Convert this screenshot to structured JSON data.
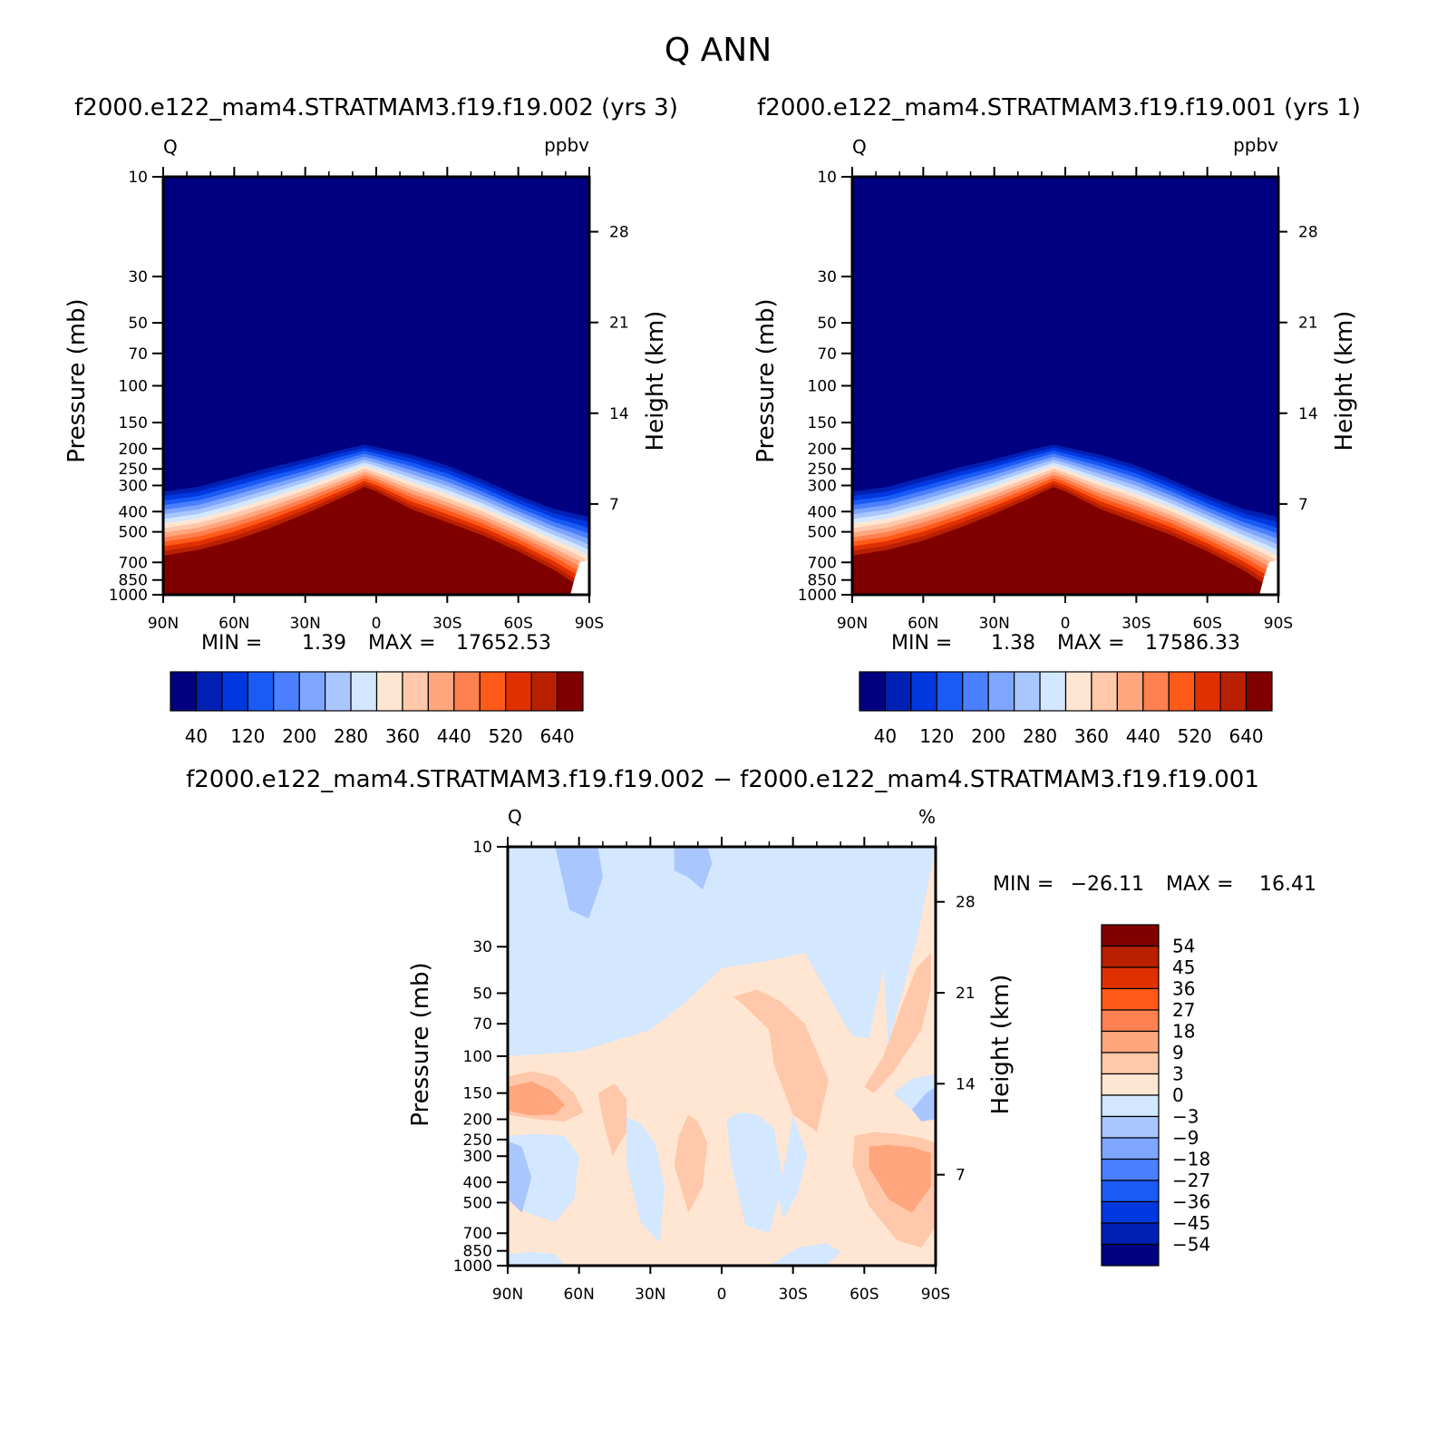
{
  "figure": {
    "title": "Q  ANN",
    "colors": {
      "ramp12": [
        "#000080",
        "#0020b4",
        "#0038e0",
        "#1a5af5",
        "#4a80ff",
        "#7ea6ff",
        "#aac6ff",
        "#d3e7ff",
        "#ffe6d2",
        "#ffc8aa",
        "#ffa67e",
        "#ff8050",
        "#ff5a1a",
        "#e03000",
        "#b82000",
        "#800000"
      ],
      "diff": [
        "#800000",
        "#b82000",
        "#e03000",
        "#ff5a1a",
        "#ff8050",
        "#ffa67e",
        "#ffc8aa",
        "#ffe6d2",
        "#d3e7ff",
        "#aac6ff",
        "#7ea6ff",
        "#4a80ff",
        "#1a5af5",
        "#0038e0",
        "#0020b4",
        "#000080"
      ]
    }
  },
  "chart_data": [
    {
      "type": "heatmap",
      "panel": "left",
      "title": "f2000.e122_mam4.STRATMAM3.f19.f19.002  (yrs  3)",
      "left_label": "Q",
      "right_label": "ppbv",
      "xlabel": "",
      "ylabel": "Pressure  (mb)",
      "ylabel_right": "Height  (km)",
      "x_ticks": [
        "90N",
        "60N",
        "30N",
        "0",
        "30S",
        "60S",
        "90S"
      ],
      "y_ticks": [
        10,
        30,
        50,
        70,
        100,
        150,
        200,
        250,
        300,
        400,
        500,
        700,
        850,
        1000
      ],
      "height_ticks": [
        28,
        21,
        14,
        7
      ],
      "ylim": [
        10,
        1000
      ],
      "y_scale": "log",
      "stats": {
        "min_label": "MIN =",
        "min": "1.39",
        "max_label": "MAX =",
        "max": "17652.53"
      },
      "colorbar_labels": [
        "40",
        "120",
        "200",
        "280",
        "360",
        "440",
        "520",
        "640"
      ],
      "field": {
        "lat": [
          90,
          75,
          60,
          45,
          30,
          15,
          5,
          0,
          -15,
          -30,
          -45,
          -60,
          -75,
          -85,
          -90
        ],
        "transition_top_mb": [
          305,
          290,
          260,
          235,
          215,
          195,
          185,
          190,
          205,
          230,
          270,
          320,
          370,
          390,
          400
        ],
        "transition_bottom_mb": [
          650,
          610,
          550,
          480,
          410,
          345,
          305,
          320,
          390,
          450,
          520,
          620,
          760,
          900,
          1000
        ]
      }
    },
    {
      "type": "heatmap",
      "panel": "right",
      "title": "f2000.e122_mam4.STRATMAM3.f19.f19.001  (yrs  1)",
      "left_label": "Q",
      "right_label": "ppbv",
      "xlabel": "",
      "ylabel": "Pressure  (mb)",
      "ylabel_right": "Height  (km)",
      "x_ticks": [
        "90N",
        "60N",
        "30N",
        "0",
        "30S",
        "60S",
        "90S"
      ],
      "y_ticks": [
        10,
        30,
        50,
        70,
        100,
        150,
        200,
        250,
        300,
        400,
        500,
        700,
        850,
        1000
      ],
      "height_ticks": [
        28,
        21,
        14,
        7
      ],
      "ylim": [
        10,
        1000
      ],
      "y_scale": "log",
      "stats": {
        "min_label": "MIN =",
        "min": "1.38",
        "max_label": "MAX =",
        "max": "17586.33"
      },
      "colorbar_labels": [
        "40",
        "120",
        "200",
        "280",
        "360",
        "440",
        "520",
        "640"
      ],
      "field": {
        "lat": [
          90,
          75,
          60,
          45,
          30,
          15,
          5,
          0,
          -15,
          -30,
          -45,
          -60,
          -75,
          -85,
          -90
        ],
        "transition_top_mb": [
          305,
          290,
          260,
          235,
          215,
          195,
          185,
          190,
          205,
          230,
          270,
          320,
          370,
          390,
          400
        ],
        "transition_bottom_mb": [
          650,
          610,
          550,
          480,
          410,
          345,
          305,
          320,
          390,
          450,
          520,
          620,
          760,
          900,
          1000
        ]
      }
    },
    {
      "type": "heatmap",
      "panel": "difference",
      "title": "f2000.e122_mam4.STRATMAM3.f19.f19.002 − f2000.e122_mam4.STRATMAM3.f19.f19.001",
      "left_label": "Q",
      "right_label": "%",
      "xlabel": "",
      "ylabel": "Pressure  (mb)",
      "ylabel_right": "Height  (km)",
      "x_ticks": [
        "90N",
        "60N",
        "30N",
        "0",
        "30S",
        "60S",
        "90S"
      ],
      "y_ticks": [
        10,
        30,
        50,
        70,
        100,
        150,
        200,
        250,
        300,
        400,
        500,
        700,
        850,
        1000
      ],
      "height_ticks": [
        28,
        21,
        14,
        7
      ],
      "ylim": [
        10,
        1000
      ],
      "y_scale": "log",
      "stats": {
        "min_label": "MIN =",
        "min": "−26.11",
        "max_label": "MAX =",
        "max": "16.41"
      },
      "colorbar_labels": [
        "54",
        "45",
        "36",
        "27",
        "18",
        "9",
        "3",
        "0",
        "−3",
        "−9",
        "−18",
        "−27",
        "−36",
        "−45",
        "−54"
      ],
      "regions": [
        {
          "level": "0 to 3",
          "color_index": 7,
          "lat": [
            90,
            60,
            30,
            15,
            0,
            -20,
            -35,
            -50,
            -55,
            -62,
            -70,
            -90,
            -90,
            90
          ],
          "p": [
            100,
            95,
            75,
            55,
            38,
            35,
            32,
            65,
            80,
            82,
            30,
            10,
            1000,
            1000
          ]
        },
        {
          "level": "3 to 9",
          "color_index": 6,
          "lat": [
            -20,
            -10,
            -5,
            -15,
            -25,
            -35,
            -45,
            -40,
            -30,
            -22
          ],
          "p": [
            75,
            58,
            52,
            48,
            55,
            70,
            130,
            230,
            190,
            110
          ]
        },
        {
          "level": "3 to 9",
          "color_index": 6,
          "lat": [
            -60,
            -68,
            -75,
            -82,
            -88,
            -88,
            -84,
            -72,
            -64
          ],
          "p": [
            140,
            100,
            60,
            38,
            32,
            48,
            75,
            120,
            150
          ]
        },
        {
          "level": "3 to 9",
          "color_index": 6,
          "lat": [
            90,
            80,
            70,
            62,
            58,
            66,
            78,
            90
          ],
          "p": [
            125,
            118,
            125,
            150,
            185,
            205,
            200,
            190
          ]
        },
        {
          "level": "3 to 9",
          "color_index": 6,
          "lat": [
            -56,
            -64,
            -74,
            -84,
            -90,
            -90,
            -84,
            -74,
            -62,
            -55
          ],
          "p": [
            240,
            230,
            235,
            245,
            260,
            650,
            820,
            760,
            520,
            330
          ]
        },
        {
          "level": "3 to 9",
          "color_index": 6,
          "lat": [
            14,
            10,
            6,
            8,
            14,
            20,
            18
          ],
          "p": [
            190,
            205,
            260,
            420,
            560,
            330,
            240
          ]
        },
        {
          "level": "3 to 9",
          "color_index": 6,
          "lat": [
            52,
            45,
            40,
            40,
            46,
            50
          ],
          "p": [
            150,
            135,
            160,
            230,
            300,
            200
          ]
        },
        {
          "level": "9 to 18",
          "color_index": 5,
          "lat": [
            90,
            80,
            72,
            66,
            70,
            80,
            90
          ],
          "p": [
            140,
            132,
            145,
            170,
            190,
            192,
            182
          ]
        },
        {
          "level": "9 to 18",
          "color_index": 5,
          "lat": [
            -62,
            -70,
            -80,
            -88,
            -88,
            -80,
            -70,
            -62
          ],
          "p": [
            270,
            265,
            272,
            290,
            420,
            560,
            480,
            340
          ]
        },
        {
          "level": "-3 to 0",
          "color_index": 8,
          "lat": [
            90,
            70,
            50,
            30,
            10,
            -10,
            -30,
            -50,
            -65,
            -70,
            -82,
            -90,
            -90,
            90
          ],
          "p": [
            10,
            10,
            10,
            10,
            10,
            10,
            10,
            10,
            10,
            88,
            28,
            10,
            1,
            1
          ]
        },
        {
          "level": "-3 to 0",
          "color_index": 8,
          "lat": [
            90,
            78,
            66,
            60,
            62,
            70,
            82,
            90
          ],
          "p": [
            240,
            235,
            240,
            300,
            480,
            620,
            560,
            440
          ]
        },
        {
          "level": "-3 to 0",
          "color_index": 8,
          "lat": [
            40,
            34,
            28,
            24,
            26,
            34,
            40
          ],
          "p": [
            195,
            210,
            260,
            420,
            780,
            620,
            330
          ]
        },
        {
          "level": "-3 to 0",
          "color_index": 8,
          "lat": [
            -2,
            -8,
            -15,
            -22,
            -26,
            -20,
            -10,
            -4
          ],
          "p": [
            200,
            185,
            190,
            220,
            400,
            700,
            640,
            330
          ]
        },
        {
          "level": "-3 to 0",
          "color_index": 8,
          "lat": [
            -30,
            -28,
            -24,
            -26,
            -32,
            -36
          ],
          "p": [
            190,
            260,
            470,
            600,
            450,
            300
          ]
        },
        {
          "level": "-3 to 0",
          "color_index": 8,
          "lat": [
            90,
            80,
            70,
            66,
            72,
            82,
            90
          ],
          "p": [
            880,
            860,
            880,
            1000,
            1000,
            1000,
            1000
          ]
        },
        {
          "level": "-3 to 0",
          "color_index": 8,
          "lat": [
            -20,
            -32,
            -44,
            -50,
            -44,
            -30
          ],
          "p": [
            1000,
            820,
            780,
            860,
            1000,
            1000
          ]
        },
        {
          "level": "-3 to 0",
          "color_index": 8,
          "lat": [
            -72,
            -80,
            -90,
            -90,
            -82
          ],
          "p": [
            150,
            128,
            122,
            200,
            190
          ]
        },
        {
          "level": "-9 to -3",
          "color_index": 9,
          "lat": [
            90,
            84,
            80,
            84,
            90
          ],
          "p": [
            255,
            270,
            380,
            560,
            480
          ]
        },
        {
          "level": "-9 to -3",
          "color_index": 9,
          "lat": [
            70,
            62,
            56,
            52,
            50,
            56,
            64
          ],
          "p": [
            10,
            10,
            10,
            10,
            14,
            22,
            20
          ]
        },
        {
          "level": "-9 to -3",
          "color_index": 9,
          "lat": [
            20,
            12,
            6,
            4,
            8,
            14,
            20
          ],
          "p": [
            10,
            10,
            10,
            12,
            16,
            14,
            13
          ]
        },
        {
          "level": "-9 to -3",
          "color_index": 9,
          "lat": [
            -80,
            -86,
            -90,
            -90,
            -84
          ],
          "p": [
            180,
            150,
            140,
            200,
            205
          ]
        }
      ]
    }
  ]
}
